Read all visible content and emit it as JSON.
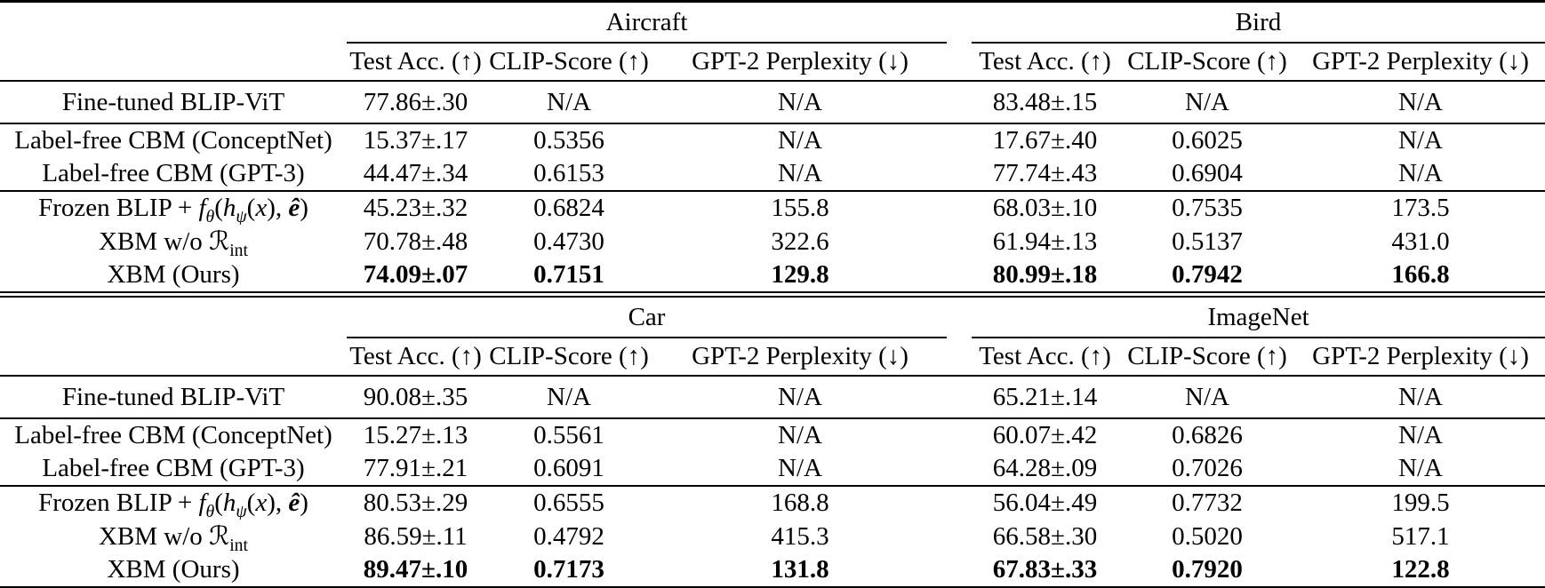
{
  "colors": {
    "text": "#000000",
    "background": "#ffffff",
    "rule": "#000000"
  },
  "metrics": {
    "test_acc": "Test Acc. (↑)",
    "clip_score": "CLIP-Score (↑)",
    "gpt2_ppl": "GPT-2 Perplexity (↓)"
  },
  "labels": {
    "finetuned": "Fine-tuned BLIP-ViT",
    "cbm_cn": "Label-free CBM (ConceptNet)",
    "cbm_gpt3": "Label-free CBM (GPT-3)",
    "frozen_html": "Frozen BLIP + <i>f</i><sub><i>θ</i></sub>(<i>h</i><sub><i>ψ</i></sub>(<i>x</i>), <b><i>ê</i></b>)",
    "xbm_wo_html": "XBM w/o <span class='cal'>ℛ</span><sub>int</sub>",
    "xbm_ours": "XBM (Ours)"
  },
  "t1": {
    "groups": [
      "Aircraft",
      "Bird"
    ],
    "finetuned": [
      "77.86±.30",
      "N/A",
      "N/A",
      "83.48±.15",
      "N/A",
      "N/A"
    ],
    "cbm_cn": [
      "15.37±.17",
      "0.5356",
      "N/A",
      "17.67±.40",
      "0.6025",
      "N/A"
    ],
    "cbm_gpt3": [
      "44.47±.34",
      "0.6153",
      "N/A",
      "77.74±.43",
      "0.6904",
      "N/A"
    ],
    "frozen": [
      "45.23±.32",
      "0.6824",
      "155.8",
      "68.03±.10",
      "0.7535",
      "173.5"
    ],
    "xbm_wo": [
      "70.78±.48",
      "0.4730",
      "322.6",
      "61.94±.13",
      "0.5137",
      "431.0"
    ],
    "xbm": [
      "74.09±.07",
      "0.7151",
      "129.8",
      "80.99±.18",
      "0.7942",
      "166.8"
    ]
  },
  "t2": {
    "groups": [
      "Car",
      "ImageNet"
    ],
    "finetuned": [
      "90.08±.35",
      "N/A",
      "N/A",
      "65.21±.14",
      "N/A",
      "N/A"
    ],
    "cbm_cn": [
      "15.27±.13",
      "0.5561",
      "N/A",
      "60.07±.42",
      "0.6826",
      "N/A"
    ],
    "cbm_gpt3": [
      "77.91±.21",
      "0.6091",
      "N/A",
      "64.28±.09",
      "0.7026",
      "N/A"
    ],
    "frozen": [
      "80.53±.29",
      "0.6555",
      "168.8",
      "56.04±.49",
      "0.7732",
      "199.5"
    ],
    "xbm_wo": [
      "86.59±.11",
      "0.4792",
      "415.3",
      "66.58±.30",
      "0.5020",
      "517.1"
    ],
    "xbm": [
      "89.47±.10",
      "0.7173",
      "131.8",
      "67.83±.33",
      "0.7920",
      "122.8"
    ]
  }
}
